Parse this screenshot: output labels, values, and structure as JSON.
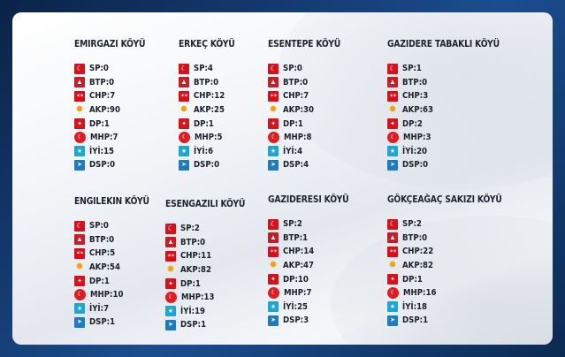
{
  "villages": [
    {
      "name": "EMIRGAZI KÖYÜ",
      "results": [
        {
          "label": "SP:0",
          "icon": "saadet-logo-icon",
          "cls": "sp"
        },
        {
          "label": "BTP:0",
          "icon": "btp-logo-icon",
          "cls": "btp"
        },
        {
          "label": "CHP:7",
          "icon": "chp-logo-icon",
          "cls": "chp"
        },
        {
          "label": "AKP:90",
          "icon": "akp-logo-icon",
          "cls": "akp"
        },
        {
          "label": "DP:1",
          "icon": "dp-logo-icon",
          "cls": "dp"
        },
        {
          "label": "MHP:7",
          "icon": "mhp-logo-icon",
          "cls": "mhp"
        },
        {
          "label": "İYİ:15",
          "icon": "iyi-logo-icon",
          "cls": "iyi"
        },
        {
          "label": "DSP:0",
          "icon": "dsp-logo-icon",
          "cls": "dsp"
        }
      ]
    },
    {
      "name": "ERKEÇ KÖYÜ",
      "results": [
        {
          "label": "SP:4",
          "icon": "saadet-logo-icon",
          "cls": "sp"
        },
        {
          "label": "BTP:0",
          "icon": "btp-logo-icon",
          "cls": "btp"
        },
        {
          "label": "CHP:12",
          "icon": "chp-logo-icon",
          "cls": "chp"
        },
        {
          "label": "AKP:25",
          "icon": "akp-logo-icon",
          "cls": "akp"
        },
        {
          "label": "DP:1",
          "icon": "dp-logo-icon",
          "cls": "dp"
        },
        {
          "label": "MHP:5",
          "icon": "mhp-logo-icon",
          "cls": "mhp"
        },
        {
          "label": "İYİ:6",
          "icon": "iyi-logo-icon",
          "cls": "iyi"
        },
        {
          "label": "DSP:0",
          "icon": "dsp-logo-icon",
          "cls": "dsp"
        }
      ]
    },
    {
      "name": "ESENTEPE KÖYÜ",
      "results": [
        {
          "label": "SP:0",
          "icon": "saadet-logo-icon",
          "cls": "sp"
        },
        {
          "label": "BTP:0",
          "icon": "btp-logo-icon",
          "cls": "btp"
        },
        {
          "label": "CHP:7",
          "icon": "chp-logo-icon",
          "cls": "chp"
        },
        {
          "label": "AKP:30",
          "icon": "akp-logo-icon",
          "cls": "akp"
        },
        {
          "label": "DP:1",
          "icon": "dp-logo-icon",
          "cls": "dp"
        },
        {
          "label": "MHP:8",
          "icon": "mhp-logo-icon",
          "cls": "mhp"
        },
        {
          "label": "İYİ:4",
          "icon": "iyi-logo-icon",
          "cls": "iyi"
        },
        {
          "label": "DSP:4",
          "icon": "dsp-logo-icon",
          "cls": "dsp"
        }
      ]
    },
    {
      "name": "GAZIDERE TABAKLI KÖYÜ",
      "results": [
        {
          "label": "SP:1",
          "icon": "saadet-logo-icon",
          "cls": "sp"
        },
        {
          "label": "BTP:0",
          "icon": "btp-logo-icon",
          "cls": "btp"
        },
        {
          "label": "CHP:3",
          "icon": "chp-logo-icon",
          "cls": "chp"
        },
        {
          "label": "AKP:63",
          "icon": "akp-logo-icon",
          "cls": "akp"
        },
        {
          "label": "DP:2",
          "icon": "dp-logo-icon",
          "cls": "dp"
        },
        {
          "label": "MHP:3",
          "icon": "mhp-logo-icon",
          "cls": "mhp"
        },
        {
          "label": "İYİ:20",
          "icon": "iyi-logo-icon",
          "cls": "iyi"
        },
        {
          "label": "DSP:0",
          "icon": "dsp-logo-icon",
          "cls": "dsp"
        }
      ]
    },
    {
      "name": "ENGILEKIN KÖYÜ",
      "results": [
        {
          "label": "SP:0",
          "icon": "saadet-logo-icon",
          "cls": "sp"
        },
        {
          "label": "BTP:0",
          "icon": "btp-logo-icon",
          "cls": "btp"
        },
        {
          "label": "CHP:5",
          "icon": "chp-logo-icon",
          "cls": "chp"
        },
        {
          "label": "AKP:54",
          "icon": "akp-logo-icon",
          "cls": "akp"
        },
        {
          "label": "DP:1",
          "icon": "dp-logo-icon",
          "cls": "dp"
        },
        {
          "label": "MHP:10",
          "icon": "mhp-logo-icon",
          "cls": "mhp"
        },
        {
          "label": "İYİ:7",
          "icon": "iyi-logo-icon",
          "cls": "iyi"
        },
        {
          "label": "DSP:1",
          "icon": "dsp-logo-icon",
          "cls": "dsp"
        }
      ]
    },
    {
      "name": "ESENGAZILI KÖYÜ",
      "results": [
        {
          "label": "SP:2",
          "icon": "saadet-logo-icon",
          "cls": "sp"
        },
        {
          "label": "BTP:0",
          "icon": "btp-logo-icon",
          "cls": "btp"
        },
        {
          "label": "CHP:11",
          "icon": "chp-logo-icon",
          "cls": "chp"
        },
        {
          "label": "AKP:82",
          "icon": "akp-logo-icon",
          "cls": "akp"
        },
        {
          "label": "DP:1",
          "icon": "dp-logo-icon",
          "cls": "dp"
        },
        {
          "label": "MHP:13",
          "icon": "mhp-logo-icon",
          "cls": "mhp"
        },
        {
          "label": "İYİ:19",
          "icon": "iyi-logo-icon",
          "cls": "iyi"
        },
        {
          "label": "DSP:1",
          "icon": "dsp-logo-icon",
          "cls": "dsp"
        }
      ]
    },
    {
      "name": "GAZIDERESI KÖYÜ",
      "results": [
        {
          "label": "SP:2",
          "icon": "saadet-logo-icon",
          "cls": "sp"
        },
        {
          "label": "BTP:1",
          "icon": "btp-logo-icon",
          "cls": "btp"
        },
        {
          "label": "CHP:14",
          "icon": "chp-logo-icon",
          "cls": "chp"
        },
        {
          "label": "AKP:47",
          "icon": "akp-logo-icon",
          "cls": "akp"
        },
        {
          "label": "DP:10",
          "icon": "dp-logo-icon",
          "cls": "dp"
        },
        {
          "label": "MHP:7",
          "icon": "mhp-logo-icon",
          "cls": "mhp"
        },
        {
          "label": "İYİ:25",
          "icon": "iyi-logo-icon",
          "cls": "iyi"
        },
        {
          "label": "DSP:3",
          "icon": "dsp-logo-icon",
          "cls": "dsp"
        }
      ]
    },
    {
      "name": "GÖKÇEAĞAÇ SAKIZI KÖYÜ",
      "results": [
        {
          "label": "SP:2",
          "icon": "saadet-logo-icon",
          "cls": "sp"
        },
        {
          "label": "BTP:0",
          "icon": "btp-logo-icon",
          "cls": "btp"
        },
        {
          "label": "CHP:22",
          "icon": "chp-logo-icon",
          "cls": "chp"
        },
        {
          "label": "AKP:82",
          "icon": "akp-logo-icon",
          "cls": "akp"
        },
        {
          "label": "DP:1",
          "icon": "dp-logo-icon",
          "cls": "dp"
        },
        {
          "label": "MHP:16",
          "icon": "mhp-logo-icon",
          "cls": "mhp"
        },
        {
          "label": "İYİ:18",
          "icon": "iyi-logo-icon",
          "cls": "iyi"
        },
        {
          "label": "DSP:1",
          "icon": "dsp-logo-icon",
          "cls": "dsp"
        }
      ]
    }
  ],
  "colors": {
    "frame": "#0d2b55",
    "text": "#1a1f2a",
    "saadet": "#d3121b",
    "akp": "#f5a000",
    "iyi": "#1aa7d8",
    "dsp": "#1c7cc3"
  }
}
